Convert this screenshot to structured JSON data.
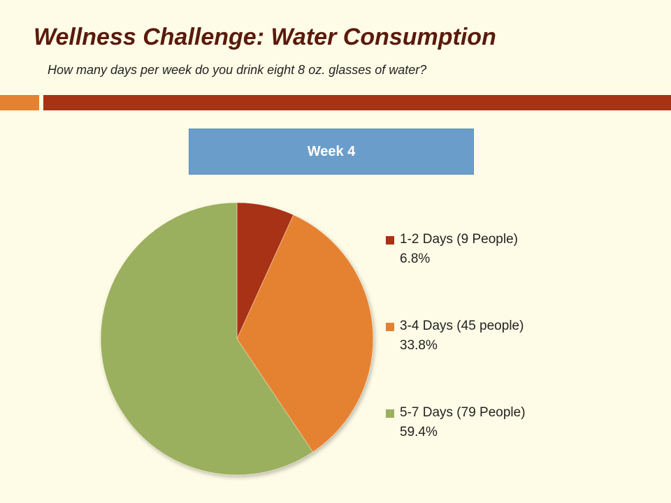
{
  "slide": {
    "title": "Wellness Challenge: Water Consumption",
    "subtitle": "How many days per week do you drink eight 8 oz. glasses of water?",
    "accent_color": "#e58232",
    "bar_color": "#a83214"
  },
  "chart_data": {
    "type": "pie",
    "title": "Week 4",
    "categories": [
      "1-2 Days (9 People)",
      "3-4 Days (45 people)",
      "5-7 Days (79 People)"
    ],
    "values": [
      6.8,
      33.8,
      59.4
    ],
    "percent_labels": [
      "6.8%",
      "33.8%",
      "59.4%"
    ],
    "colors": [
      "#a83214",
      "#e58232",
      "#9bb05e"
    ],
    "legend_position": "right"
  }
}
